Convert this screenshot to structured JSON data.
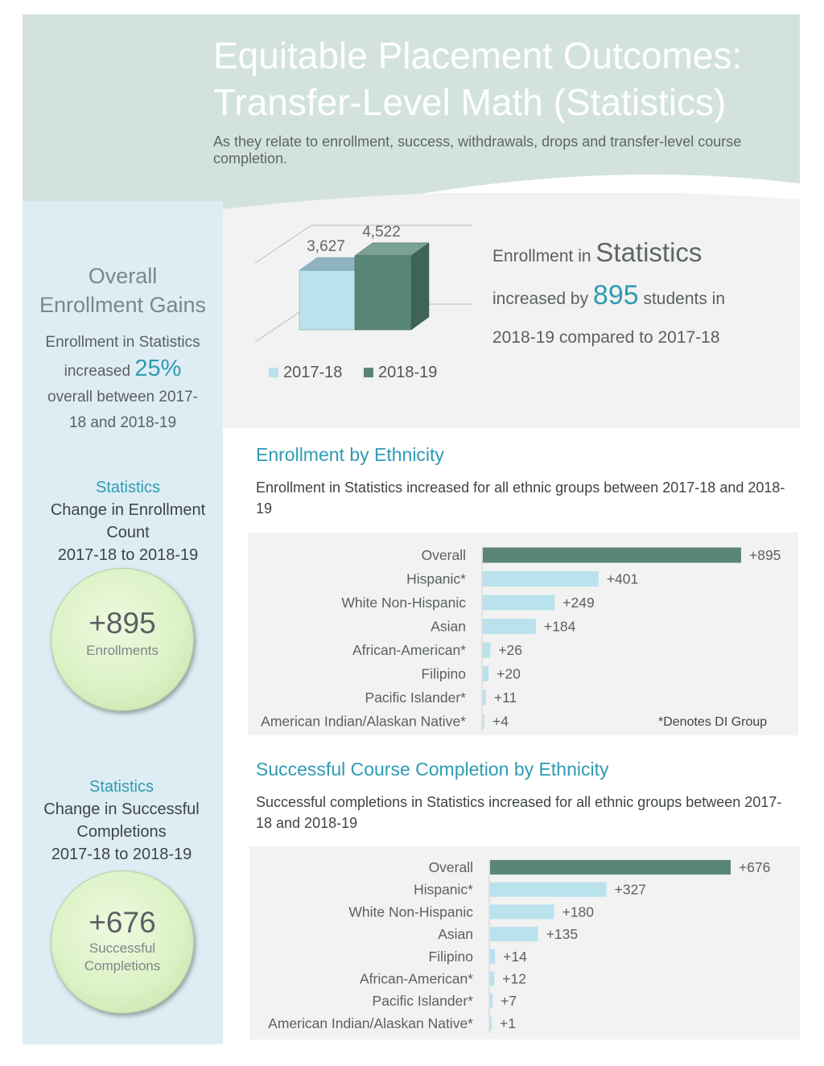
{
  "header": {
    "title_line1": "Equitable Placement Outcomes:",
    "title_line2": "Transfer-Level Math (Statistics)",
    "subtitle": "As they relate to enrollment, success, withdrawals, drops and transfer-level course completion."
  },
  "sidebar": {
    "gains_title_line1": "Overall",
    "gains_title_line2": "Enrollment Gains",
    "gains_text_line1": "Enrollment in Statistics",
    "gains_text_increased": "increased ",
    "gains_pct": "25%",
    "gains_text_line3": "overall between 2017-",
    "gains_text_line4": "18 and 2018-19",
    "enroll_change": {
      "heading": "Statistics",
      "line1": "Change in Enrollment",
      "line2": "Count",
      "line3": "2017-18 to 2018-19",
      "value": "+895",
      "caption": "Enrollments"
    },
    "completion_change": {
      "heading": "Statistics",
      "line1": "Change in Successful",
      "line2": "Completions",
      "line3": "2017-18 to 2018-19",
      "value": "+676",
      "caption_line1": "Successful",
      "caption_line2": "Completions"
    }
  },
  "enrollment_statement": {
    "prefix": "Enrollment in ",
    "subject": "Statistics",
    "middle": "increased by ",
    "number": "895",
    "suffix": " students in",
    "line3": "2018-19 compared to 2017-18"
  },
  "ethnicity_section": {
    "title": "Enrollment by Ethnicity",
    "description": "Enrollment in Statistics increased for all ethnic groups between 2017-18 and 2018-19",
    "note": "*Denotes DI Group"
  },
  "completion_section": {
    "title": "Successful Course Completion by Ethnicity",
    "description": "Successful completions in Statistics increased for all ethnic groups between 2017-18 and 2018-19"
  },
  "colors": {
    "teal_dark": "#5a8676",
    "light_blue": "#b9e2ec",
    "accent": "#2f9bb3",
    "header_bg": "#d3e3dc",
    "sidebar_bg": "#deedf4"
  },
  "chart_data": [
    {
      "type": "bar",
      "title": "",
      "categories": [
        "2017-18",
        "2018-19"
      ],
      "values": [
        3627,
        4522
      ],
      "value_labels": [
        "3,627",
        "4,522"
      ],
      "legend": [
        "2017-18",
        "2018-19"
      ],
      "legend_position": "bottom",
      "style": "3d-column"
    },
    {
      "type": "bar",
      "orientation": "horizontal",
      "title": "",
      "categories": [
        "Overall",
        "Hispanic*",
        "White Non-Hispanic",
        "Asian",
        "African-American*",
        "Filipino",
        "Pacific Islander*",
        "American Indian/Alaskan Native*"
      ],
      "values": [
        895,
        401,
        249,
        184,
        26,
        20,
        11,
        4
      ],
      "value_labels": [
        "+895",
        "+401",
        "+249",
        "+184",
        "+26",
        "+20",
        "+11",
        "+4"
      ]
    },
    {
      "type": "bar",
      "orientation": "horizontal",
      "title": "",
      "categories": [
        "Overall",
        "Hispanic*",
        "White Non-Hispanic",
        "Asian",
        "Filipino",
        "African-American*",
        "Pacific Islander*",
        "American Indian/Alaskan Native*"
      ],
      "values": [
        676,
        327,
        180,
        135,
        14,
        12,
        7,
        1
      ],
      "value_labels": [
        "+676",
        "+327",
        "+180",
        "+135",
        "+14",
        "+12",
        "+7",
        "+1"
      ]
    }
  ]
}
